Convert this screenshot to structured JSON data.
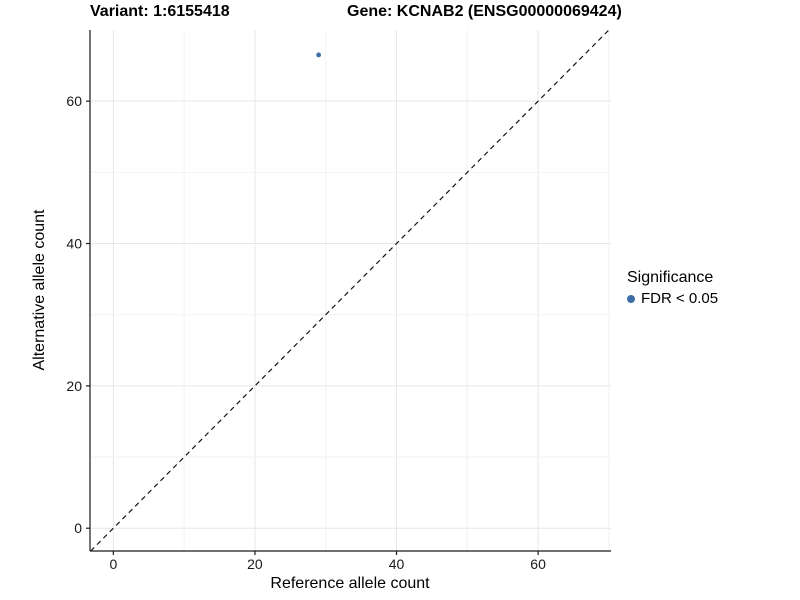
{
  "titles": {
    "variant": "Variant: 1:6155418",
    "gene": "Gene: KCNAB2 (ENSG00000069424)"
  },
  "axes": {
    "x_label": "Reference allele count",
    "y_label": "Alternative allele count"
  },
  "legend": {
    "title": "Significance",
    "items": [
      {
        "label": "FDR < 0.05",
        "color": "#3e6da6"
      }
    ]
  },
  "colors": {
    "background": "#ffffff",
    "axis_line": "#1a1a1a",
    "tick_label": "#1a1a1a",
    "grid_major": "#e7e7e7",
    "grid_minor": "#f2f2f2",
    "dashed_line": "#141414",
    "point": "#3e6da6"
  },
  "chart_data": {
    "type": "scatter",
    "title": "Variant: 1:6155418   Gene: KCNAB2 (ENSG00000069424)",
    "xlabel": "Reference allele count",
    "ylabel": "Alternative allele count",
    "xlim": [
      -3.3,
      70.3
    ],
    "ylim": [
      -3.2,
      70.0
    ],
    "x_ticks": [
      0,
      20,
      40,
      60
    ],
    "y_ticks": [
      0,
      20,
      40,
      60
    ],
    "grid_interval": 10,
    "grid": true,
    "legend_position": "right",
    "reference_line": {
      "type": "identity",
      "style": "dashed"
    },
    "series": [
      {
        "name": "FDR < 0.05",
        "color": "#3e6da6",
        "points": [
          {
            "x": 29,
            "y": 66.5
          }
        ]
      }
    ]
  }
}
